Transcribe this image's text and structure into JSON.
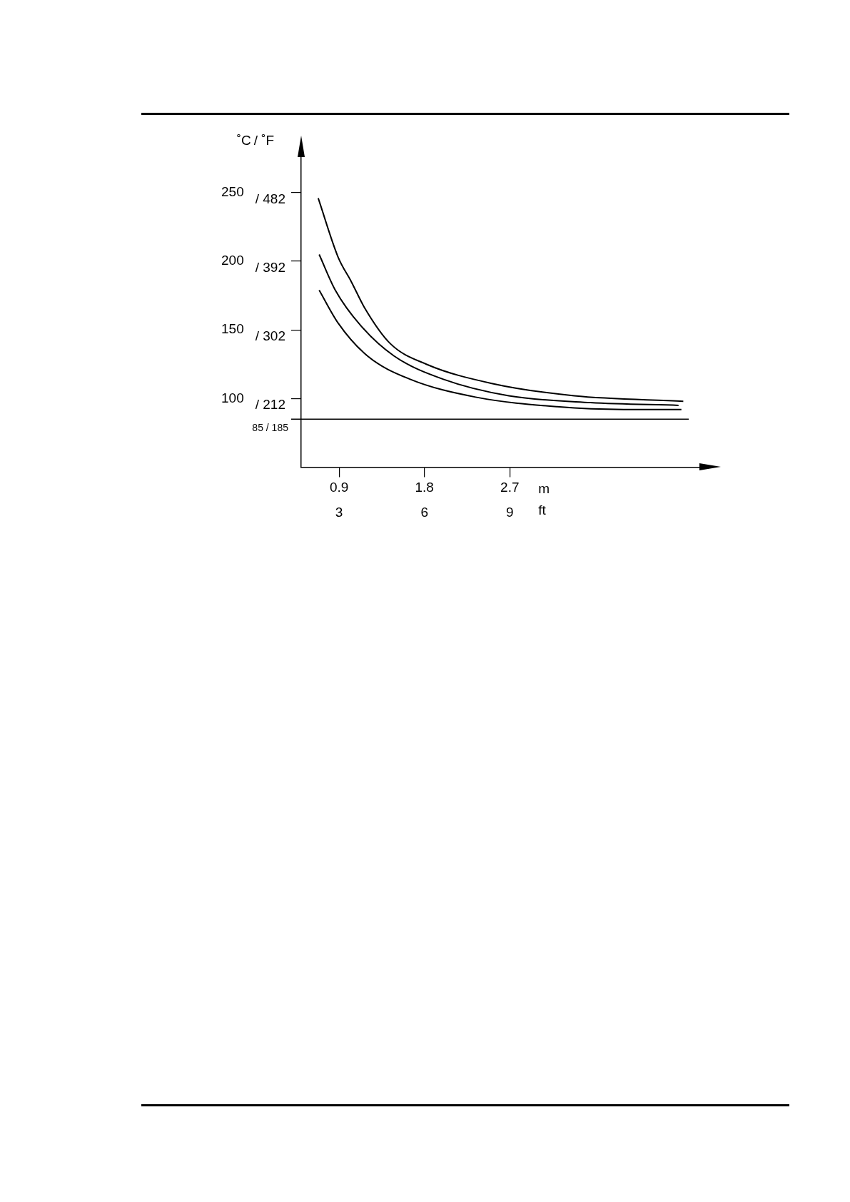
{
  "chart_data": {
    "type": "line",
    "ylabel": "˚C",
    "y2label": "/ ˚F",
    "xlabel": "m",
    "x2label": "ft",
    "xlim": [
      0.5,
      4.7
    ],
    "ylim": [
      50,
      276
    ],
    "x2lim": [
      1.667,
      15.667
    ],
    "y2lim": [
      122,
      528.8
    ],
    "xticks": [
      0.9,
      1.8,
      2.7
    ],
    "x2ticks": [
      3,
      6,
      9
    ],
    "yticks": [
      100,
      150,
      200,
      250
    ],
    "y2ticks": [
      {
        "value": 212,
        "label": "/ 212"
      },
      {
        "value": 302,
        "label": "/ 302"
      },
      {
        "value": 392,
        "label": "/ 392"
      },
      {
        "value": 482,
        "label": "/ 482"
      }
    ],
    "grid": false,
    "legend": false,
    "marker": "none",
    "line_style": "solid",
    "series": [
      {
        "color": "#000000",
        "x": [
          0.68,
          0.89,
          1.03,
          1.17,
          1.44,
          1.82,
          2.51,
          3.38,
          4.53
        ],
        "values": [
          246,
          203,
          185,
          166,
          140,
          125,
          111,
          102,
          98
        ]
      },
      {
        "color": "#000000",
        "x": [
          0.69,
          0.86,
          1.13,
          1.48,
          2.0,
          2.69,
          3.55,
          4.48
        ],
        "values": [
          205,
          179,
          153,
          131,
          114,
          102,
          97,
          95
        ]
      },
      {
        "color": "#000000",
        "x": [
          0.69,
          0.89,
          1.2,
          1.65,
          2.34,
          3.2,
          3.9,
          4.51
        ],
        "values": [
          179,
          155,
          131,
          114,
          101,
          94,
          92,
          92
        ]
      }
    ],
    "ref_lines": [
      {
        "axis": "y",
        "value": 85,
        "label": "85 / 185",
        "color": "#000000"
      }
    ]
  }
}
